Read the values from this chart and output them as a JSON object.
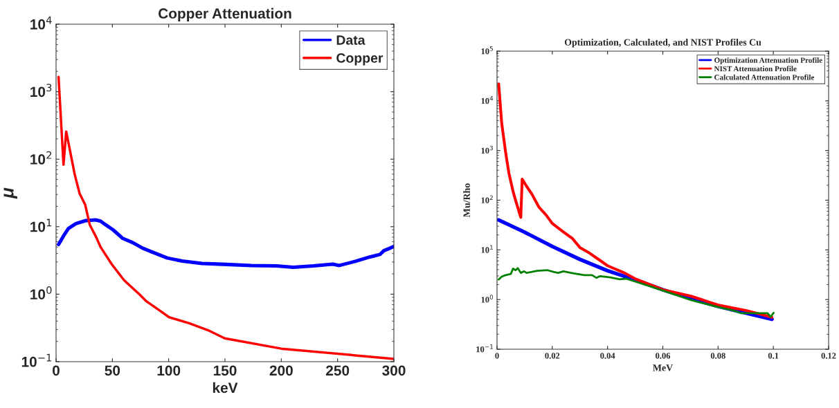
{
  "chart_data": [
    {
      "type": "line",
      "title": "Copper Attenuation",
      "xlabel": "keV",
      "ylabel": "μ",
      "log": "y",
      "legend": "top right",
      "line_style": "solid",
      "xlim": [
        0,
        300
      ],
      "xticks": [
        0,
        50,
        100,
        150,
        200,
        250,
        300
      ],
      "ylim": [
        0.1,
        10000
      ],
      "yticks": [
        {
          "value": 0.1,
          "label": "10$^{−1}$"
        },
        {
          "value": 1,
          "label": "10$^{0}$"
        },
        {
          "value": 10,
          "label": "10$^{1}$"
        },
        {
          "value": 100,
          "label": "10$^{2}$"
        },
        {
          "value": 1000,
          "label": "10$^{3}$"
        },
        {
          "value": 10000,
          "label": "10$^{4}$"
        }
      ],
      "series": [
        {
          "name": "Data",
          "color": "#0000ff",
          "x": [
            2.2,
            6.6,
            11,
            17.6,
            26.4,
            35.1,
            39.5,
            43.9,
            50.5,
            59.3,
            68.1,
            76.9,
            85.6,
            98.8,
            112,
            129.6,
            151.5,
            173.5,
            195.5,
            210.8,
            228.4,
            245.8,
            251.5,
            265.8,
            279,
            287.8,
            291,
            296.5,
            300
          ],
          "values": [
            5.45,
            7.3,
            9.4,
            11.1,
            12.3,
            12.6,
            12.1,
            10.7,
            9.0,
            6.7,
            5.8,
            4.8,
            4.2,
            3.43,
            3.1,
            2.85,
            2.76,
            2.66,
            2.62,
            2.51,
            2.62,
            2.78,
            2.66,
            3.07,
            3.57,
            3.89,
            4.4,
            4.8,
            5.1
          ]
        },
        {
          "name": "Copper",
          "color": "#ff0000",
          "x": [
            2.2,
            6.6,
            9.0,
            16.5,
            20.9,
            25.9,
            29.9,
            35.6,
            39.5,
            49.4,
            60.4,
            73.6,
            80.2,
            91.2,
            100.4,
            118.6,
            136.2,
            149.8,
            199.9,
            300
          ],
          "values": [
            1660,
            83,
            257,
            60,
            31,
            21,
            10.7,
            7.0,
            5.0,
            2.78,
            1.61,
            1.01,
            0.785,
            0.586,
            0.455,
            0.369,
            0.286,
            0.222,
            0.156,
            0.11
          ]
        }
      ]
    },
    {
      "type": "line",
      "title": "Optimization, Calculated, and NIST Profiles Cu",
      "xlabel": "MeV",
      "ylabel": "Mu/Rho",
      "log": "y",
      "legend": "top right",
      "line_style": "solid",
      "xlim": [
        0,
        0.12
      ],
      "xticks": [
        0,
        0.02,
        0.04,
        0.06,
        0.08,
        0.1,
        0.12
      ],
      "ylim": [
        0.1,
        100000
      ],
      "yticks": [
        {
          "value": 0.1,
          "label": "10$^{−1}$"
        },
        {
          "value": 1,
          "label": "10$^{0}$"
        },
        {
          "value": 10,
          "label": "10$^{1}$"
        },
        {
          "value": 100,
          "label": "10$^{2}$"
        },
        {
          "value": 1000,
          "label": "10$^{3}$"
        },
        {
          "value": 10000,
          "label": "10$^{4}$"
        },
        {
          "value": 100000,
          "label": "10$^{5}$"
        }
      ],
      "series": [
        {
          "name": "Optimization Attenuation Profile",
          "color": "#0000ff",
          "x": [
            0.0006,
            0.0098,
            0.02,
            0.0301,
            0.04,
            0.0503,
            0.06,
            0.0704,
            0.0799,
            0.0903,
            0.0995
          ],
          "values": [
            40,
            23,
            11.7,
            6.4,
            3.8,
            2.47,
            1.58,
            1.03,
            0.73,
            0.53,
            0.4
          ]
        },
        {
          "name": "NIST Attenuation Profile",
          "color": "#ff0000",
          "x": [
            0.0006,
            0.0017,
            0.0031,
            0.0043,
            0.0058,
            0.0069,
            0.0086,
            0.0091,
            0.0107,
            0.0126,
            0.0152,
            0.0178,
            0.02,
            0.024,
            0.0273,
            0.0301,
            0.0335,
            0.0368,
            0.04,
            0.0458,
            0.0503,
            0.06,
            0.0704,
            0.0799,
            0.0903,
            0.0995
          ],
          "values": [
            21900,
            3500,
            930,
            350,
            150,
            92,
            45,
            266,
            190,
            133,
            72,
            50,
            34,
            23,
            16.9,
            11,
            8.6,
            6.4,
            4.8,
            3.5,
            2.57,
            1.58,
            1.16,
            0.78,
            0.6,
            0.44
          ]
        },
        {
          "name": "Calculated Attenuation Profile",
          "color": "#008000",
          "x": [
            0.0006,
            0.0017,
            0.0031,
            0.005,
            0.0058,
            0.0067,
            0.0075,
            0.0086,
            0.0098,
            0.0107,
            0.0145,
            0.0183,
            0.0204,
            0.0221,
            0.024,
            0.0278,
            0.0316,
            0.0344,
            0.036,
            0.0373,
            0.041,
            0.0444,
            0.0467,
            0.0503,
            0.06,
            0.0704,
            0.0799,
            0.0856,
            0.0884,
            0.094,
            0.0979,
            0.099,
            0.1001
          ],
          "values": [
            2.52,
            2.9,
            3.1,
            3.27,
            4.2,
            3.9,
            4.3,
            3.44,
            3.7,
            3.44,
            3.8,
            3.9,
            3.6,
            3.44,
            3.7,
            3.35,
            3.1,
            3.1,
            2.73,
            2.96,
            2.79,
            2.56,
            2.63,
            2.28,
            1.52,
            0.97,
            0.71,
            0.6,
            0.53,
            0.53,
            0.53,
            0.45,
            0.54
          ]
        }
      ]
    }
  ]
}
